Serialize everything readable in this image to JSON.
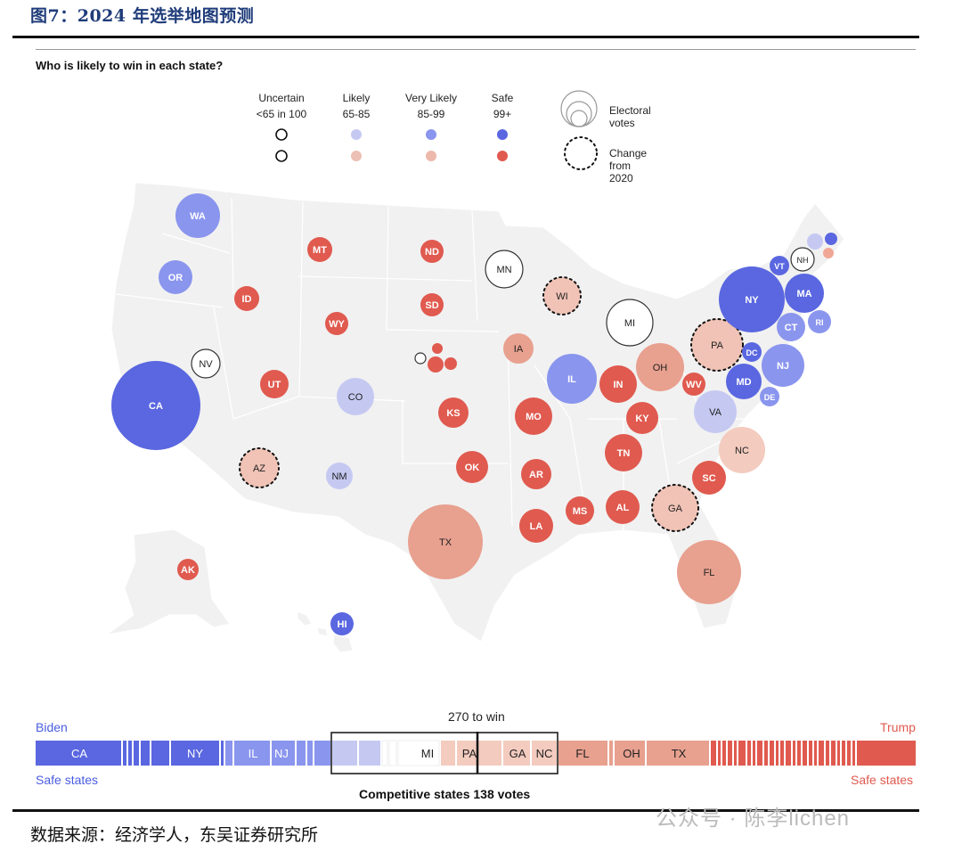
{
  "figure_title": "图7：2024 年选举地图预测",
  "subtitle": "Who is likely to win in each state?",
  "legend": {
    "categories": [
      {
        "name": "Uncertain",
        "range": "<65 in 100"
      },
      {
        "name": "Likely",
        "range": "65-85"
      },
      {
        "name": "Very Likely",
        "range": "85-99"
      },
      {
        "name": "Safe",
        "range": "99+"
      }
    ],
    "electoral_votes_label": "Electoral votes",
    "change_label": "Change from 2020"
  },
  "colors": {
    "dem_likely": "#c5c9f2",
    "dem_very_likely": "#8a95ee",
    "dem_safe": "#5a67e0",
    "rep_likely": "#ecb1a3",
    "rep_very_likely": "#e5a08f",
    "rep_safe": "#e05a4f",
    "uncertain": "#ffffff",
    "land": "#f1f1f1",
    "state_border": "#ffffff"
  },
  "states": [
    {
      "code": "WA",
      "rating": "dem_very_likely",
      "ev": 12
    },
    {
      "code": "OR",
      "rating": "dem_very_likely",
      "ev": 8
    },
    {
      "code": "CA",
      "rating": "dem_safe",
      "ev": 54
    },
    {
      "code": "NV",
      "rating": "uncertain",
      "ev": 6
    },
    {
      "code": "ID",
      "rating": "rep_safe",
      "ev": 4
    },
    {
      "code": "MT",
      "rating": "rep_safe",
      "ev": 4
    },
    {
      "code": "WY",
      "rating": "rep_safe",
      "ev": 3
    },
    {
      "code": "UT",
      "rating": "rep_safe",
      "ev": 6
    },
    {
      "code": "AZ",
      "rating": "rep_likely",
      "ev": 11,
      "changed": true
    },
    {
      "code": "CO",
      "rating": "dem_likely",
      "ev": 10
    },
    {
      "code": "NM",
      "rating": "dem_likely",
      "ev": 5
    },
    {
      "code": "ND",
      "rating": "rep_safe",
      "ev": 3
    },
    {
      "code": "SD",
      "rating": "rep_safe",
      "ev": 3
    },
    {
      "code": "KS",
      "rating": "rep_safe",
      "ev": 6
    },
    {
      "code": "OK",
      "rating": "rep_safe",
      "ev": 7
    },
    {
      "code": "TX",
      "rating": "rep_very_likely",
      "ev": 40
    },
    {
      "code": "MN",
      "rating": "uncertain",
      "ev": 10
    },
    {
      "code": "IA",
      "rating": "rep_very_likely",
      "ev": 6
    },
    {
      "code": "MO",
      "rating": "rep_safe",
      "ev": 10
    },
    {
      "code": "AR",
      "rating": "rep_safe",
      "ev": 6
    },
    {
      "code": "LA",
      "rating": "rep_safe",
      "ev": 8
    },
    {
      "code": "WI",
      "rating": "rep_likely",
      "ev": 10,
      "changed": true
    },
    {
      "code": "IL",
      "rating": "dem_very_likely",
      "ev": 19
    },
    {
      "code": "MI",
      "rating": "uncertain",
      "ev": 15
    },
    {
      "code": "IN",
      "rating": "rep_safe",
      "ev": 11
    },
    {
      "code": "OH",
      "rating": "rep_very_likely",
      "ev": 17
    },
    {
      "code": "KY",
      "rating": "rep_safe",
      "ev": 8
    },
    {
      "code": "TN",
      "rating": "rep_safe",
      "ev": 11
    },
    {
      "code": "MS",
      "rating": "rep_safe",
      "ev": 6
    },
    {
      "code": "AL",
      "rating": "rep_safe",
      "ev": 9
    },
    {
      "code": "GA",
      "rating": "rep_likely",
      "ev": 16,
      "changed": true
    },
    {
      "code": "FL",
      "rating": "rep_very_likely",
      "ev": 30
    },
    {
      "code": "SC",
      "rating": "rep_safe",
      "ev": 9
    },
    {
      "code": "NC",
      "rating": "rep_likely",
      "ev": 16
    },
    {
      "code": "VA",
      "rating": "dem_likely",
      "ev": 13
    },
    {
      "code": "WV",
      "rating": "rep_safe",
      "ev": 4
    },
    {
      "code": "PA",
      "rating": "rep_likely",
      "ev": 19,
      "changed": true
    },
    {
      "code": "NY",
      "rating": "dem_safe",
      "ev": 28
    },
    {
      "code": "VT",
      "rating": "dem_safe",
      "ev": 3
    },
    {
      "code": "NH",
      "rating": "uncertain",
      "ev": 4
    },
    {
      "code": "MA",
      "rating": "dem_safe",
      "ev": 11
    },
    {
      "code": "RI",
      "rating": "dem_very_likely",
      "ev": 4
    },
    {
      "code": "CT",
      "rating": "dem_very_likely",
      "ev": 7
    },
    {
      "code": "NJ",
      "rating": "dem_very_likely",
      "ev": 14
    },
    {
      "code": "DE",
      "rating": "dem_very_likely",
      "ev": 3
    },
    {
      "code": "MD",
      "rating": "dem_safe",
      "ev": 10
    },
    {
      "code": "DC",
      "rating": "dem_safe",
      "ev": 3
    },
    {
      "code": "AK",
      "rating": "rep_safe",
      "ev": 3
    },
    {
      "code": "HI",
      "rating": "dem_safe",
      "ev": 4
    }
  ],
  "bar": {
    "biden_label": "Biden",
    "trump_label": "Trump",
    "safe_left": "Safe states",
    "safe_right": "Safe states",
    "win_label": "270 to win",
    "competitive_label": "Competitive states 138 votes",
    "segment_labels": [
      "CA",
      "NY",
      "IL",
      "NJ",
      "MI",
      "PA",
      "GA",
      "NC",
      "FL",
      "OH",
      "TX"
    ]
  },
  "source": "数据来源：经济学人，东吴证券研究所",
  "watermark": "公众号 · 陈李lichen"
}
